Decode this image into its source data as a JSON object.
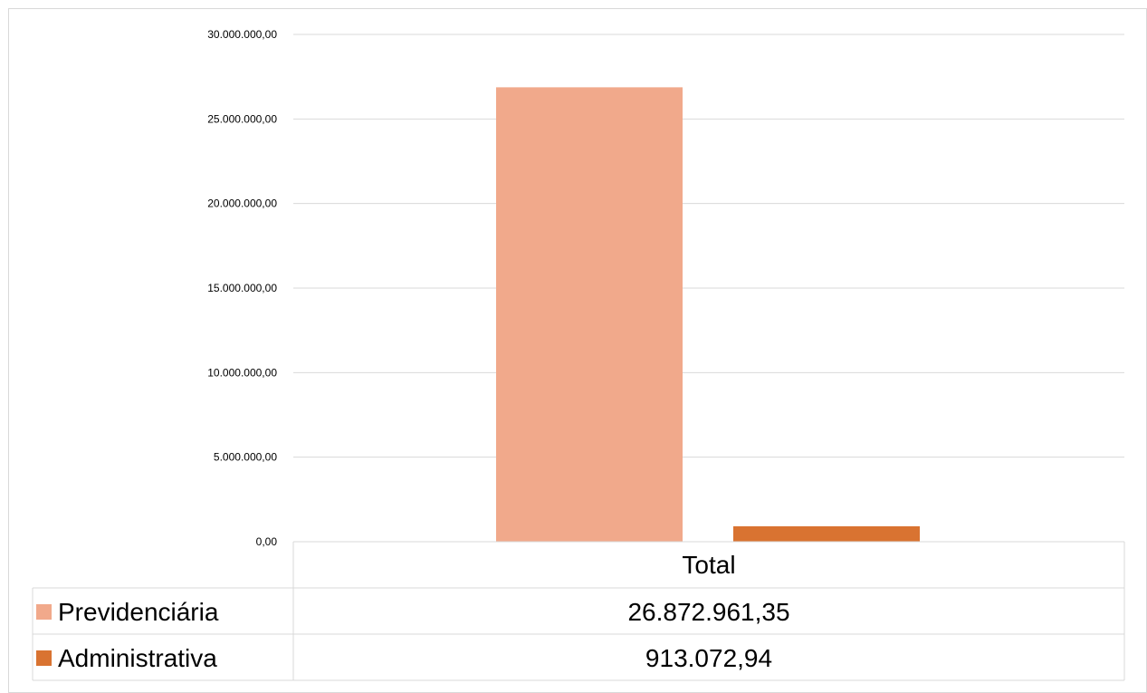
{
  "chart_data": {
    "type": "bar",
    "categories": [
      "Total"
    ],
    "series": [
      {
        "name": "Previdenciária",
        "values": [
          26872961.35
        ],
        "value_label": "26.872.961,35",
        "color": "#F1A98B"
      },
      {
        "name": "Administrativa",
        "values": [
          913072.94
        ],
        "value_label": "913.072,94",
        "color": "#D97331"
      }
    ],
    "ylim": [
      0,
      30000000
    ],
    "yticks": [
      0,
      5000000,
      10000000,
      15000000,
      20000000,
      25000000,
      30000000
    ],
    "ytick_labels": [
      "0,00",
      "5.000.000,00",
      "10.000.000,00",
      "15.000.000,00",
      "20.000.000,00",
      "25.000.000,00",
      "30.000.000,00"
    ],
    "grid": true,
    "legend": "data-table",
    "data_table": true
  }
}
